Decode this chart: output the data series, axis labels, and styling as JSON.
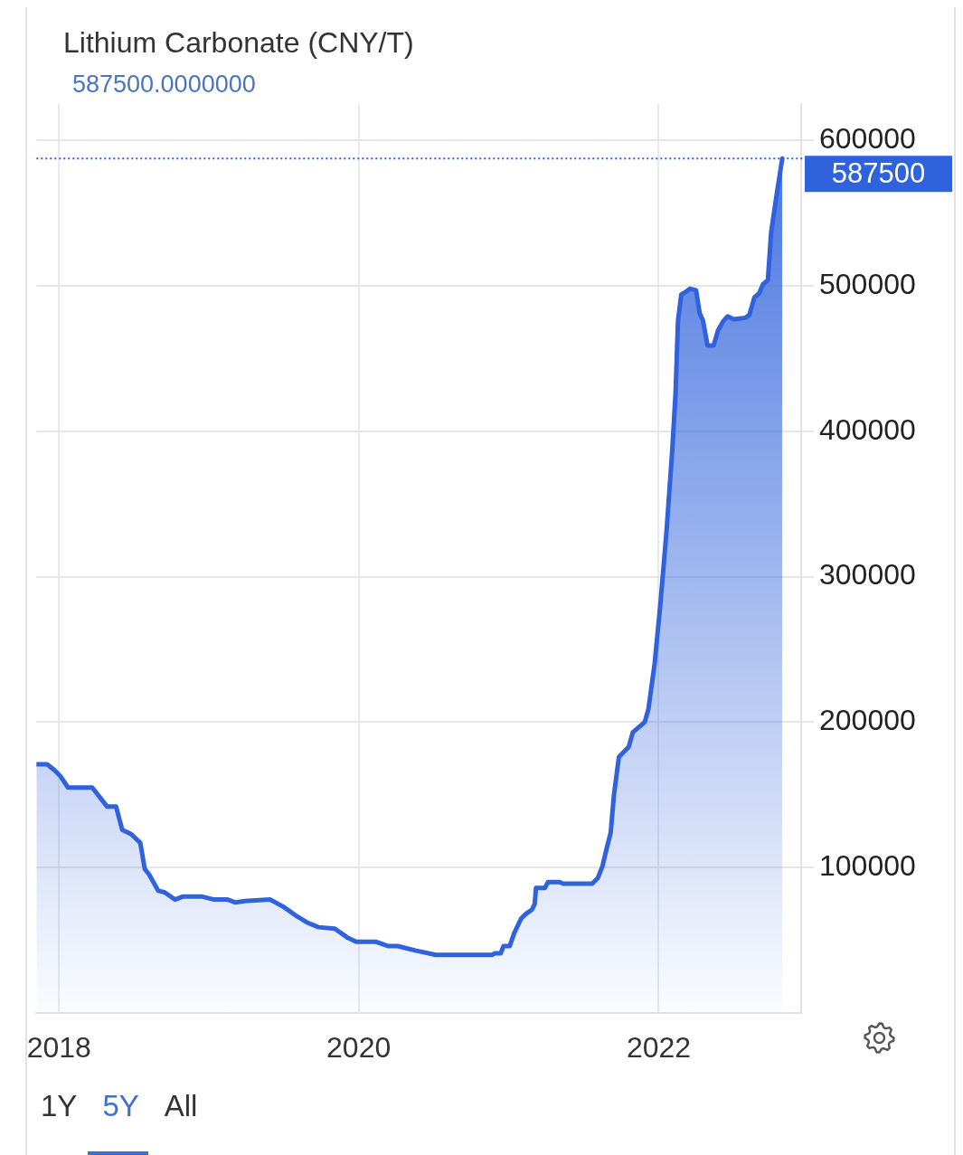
{
  "chart_data": {
    "type": "area",
    "title": "Lithium Carbonate (CNY/T)",
    "subtitle": "587500.0000000",
    "x": [
      "2017-11-07",
      "2017-12-03",
      "2017-12-21",
      "2018-01-04",
      "2018-01-23",
      "2018-03-23",
      "2018-04-28",
      "2018-05-20",
      "2018-06-04",
      "2018-06-26",
      "2018-07-18",
      "2018-07-29",
      "2018-08-09",
      "2018-08-31",
      "2018-09-15",
      "2018-10-11",
      "2018-10-29",
      "2018-12-16",
      "2019-01-14",
      "2019-02-16",
      "2019-03-07",
      "2019-03-29",
      "2019-05-30",
      "2019-07-02",
      "2019-08-01",
      "2019-08-30",
      "2019-09-25",
      "2019-11-04",
      "2019-12-04",
      "2019-12-26",
      "2020-02-11",
      "2020-03-14",
      "2020-04-05",
      "2020-05-18",
      "2020-07-07",
      "2020-11-21",
      "2020-11-28",
      "2020-12-12",
      "2020-12-19",
      "2021-01-03",
      "2021-01-14",
      "2021-01-31",
      "2021-02-11",
      "2021-02-26",
      "2021-03-05",
      "2021-03-08",
      "2021-03-30",
      "2021-04-06",
      "2021-05-05",
      "2021-05-12",
      "2021-07-23",
      "2021-08-06",
      "2021-08-17",
      "2021-08-28",
      "2021-09-06",
      "2021-09-14",
      "2021-09-26",
      "2021-10-20",
      "2021-10-30",
      "2021-11-28",
      "2021-12-07",
      "2021-12-22",
      "2022-01-05",
      "2022-01-20",
      "2022-02-03",
      "2022-02-11",
      "2022-02-17",
      "2022-02-25",
      "2022-03-09",
      "2022-03-18",
      "2022-04-02",
      "2022-04-11",
      "2022-04-19",
      "2022-04-30",
      "2022-05-15",
      "2022-05-25",
      "2022-06-08",
      "2022-06-18",
      "2022-07-02",
      "2022-07-31",
      "2022-08-10",
      "2022-08-22",
      "2022-09-03",
      "2022-09-12",
      "2022-09-24",
      "2022-10-02",
      "2022-10-16",
      "2022-10-29"
    ],
    "values": [
      171000,
      171000,
      167000,
      163000,
      155000,
      155000,
      142000,
      142000,
      126000,
      123000,
      117000,
      99000,
      95000,
      84000,
      83000,
      78000,
      80000,
      80000,
      78000,
      78000,
      76000,
      77000,
      78000,
      73000,
      67000,
      62000,
      59000,
      58000,
      52000,
      49000,
      49000,
      46000,
      46000,
      43000,
      40000,
      40000,
      41000,
      41000,
      46000,
      46000,
      55000,
      65000,
      68000,
      71000,
      75000,
      86000,
      86000,
      90000,
      90000,
      89000,
      89000,
      93000,
      101000,
      114000,
      124000,
      150000,
      176000,
      183000,
      193000,
      200000,
      209000,
      240000,
      281000,
      331000,
      387000,
      426000,
      476000,
      494000,
      496000,
      498000,
      497000,
      481000,
      476000,
      459000,
      459000,
      469000,
      476000,
      479000,
      477000,
      478000,
      480000,
      492000,
      495000,
      501000,
      504000,
      537000,
      564000,
      587500
    ],
    "color": "#2f62dc",
    "xlim": [
      "2017-11-07",
      "2022-12-14"
    ],
    "xticks": [
      "2018",
      "2020",
      "2022"
    ],
    "ylim": [
      0,
      625000
    ],
    "yticks": [
      100000,
      200000,
      300000,
      400000,
      500000,
      600000
    ],
    "grid": true,
    "ref_lines": [
      {
        "axis": "y",
        "value": 587500,
        "label": "587500",
        "color": "#2f62dc",
        "line_style": "dotted"
      }
    ],
    "annotations": [
      "1Y",
      "5Y",
      "All"
    ]
  }
}
